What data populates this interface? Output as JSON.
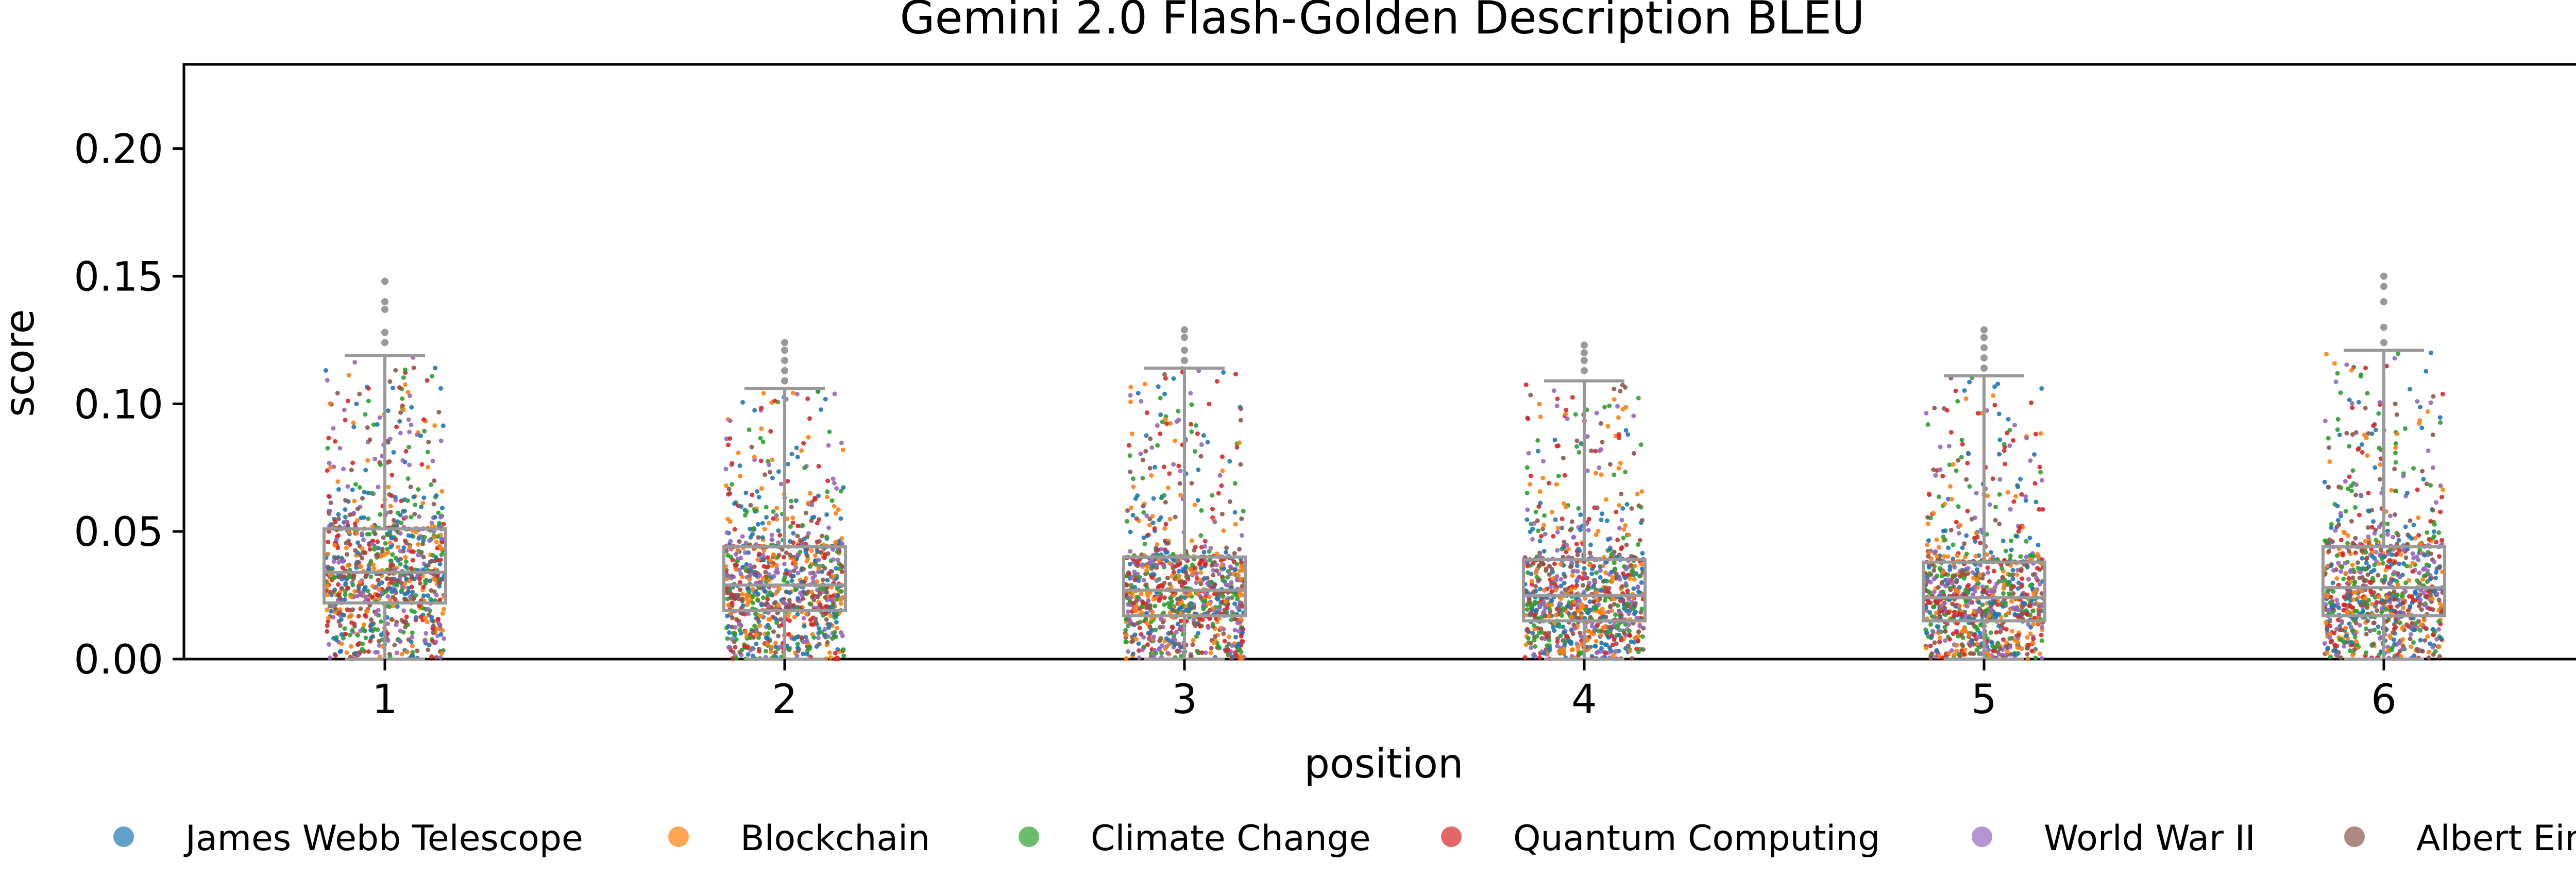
{
  "chart_data": {
    "type": "scatter",
    "title": "Gemini 2.0 Flash-Golden Description BLEU",
    "xlabel": "position",
    "ylabel": "score",
    "categories": [
      "1",
      "2",
      "3",
      "4",
      "5",
      "6"
    ],
    "ylim": [
      0,
      0.233
    ],
    "yticks": [
      "0.00",
      "0.05",
      "0.10",
      "0.15",
      "0.20"
    ],
    "grid": false,
    "legend_placement": "bottom",
    "series": [
      {
        "name": "James Webb Telescope",
        "color": "#1f77b4"
      },
      {
        "name": "Blockchain",
        "color": "#ff7f0e"
      },
      {
        "name": "Climate Change",
        "color": "#2ca02c"
      },
      {
        "name": "Quantum Computing",
        "color": "#d62728"
      },
      {
        "name": "World War II",
        "color": "#9467bd"
      },
      {
        "name": "Albert Einstein",
        "color": "#8c564b"
      }
    ],
    "boxplots": [
      {
        "position": "1",
        "q1": 0.022,
        "median": 0.034,
        "q3": 0.051,
        "whisker_low": 0.0,
        "whisker_high": 0.119,
        "outliers": [
          0.124,
          0.128,
          0.137,
          0.14,
          0.148
        ]
      },
      {
        "position": "2",
        "q1": 0.019,
        "median": 0.029,
        "q3": 0.044,
        "whisker_low": 0.0,
        "whisker_high": 0.106,
        "outliers": [
          0.109,
          0.113,
          0.117,
          0.121,
          0.124
        ]
      },
      {
        "position": "3",
        "q1": 0.017,
        "median": 0.027,
        "q3": 0.04,
        "whisker_low": 0.0,
        "whisker_high": 0.114,
        "outliers": [
          0.117,
          0.121,
          0.126,
          0.129
        ]
      },
      {
        "position": "4",
        "q1": 0.015,
        "median": 0.025,
        "q3": 0.039,
        "whisker_low": 0.0,
        "whisker_high": 0.109,
        "outliers": [
          0.113,
          0.117,
          0.12,
          0.123
        ]
      },
      {
        "position": "5",
        "q1": 0.015,
        "median": 0.024,
        "q3": 0.038,
        "whisker_low": 0.0,
        "whisker_high": 0.111,
        "outliers": [
          0.114,
          0.118,
          0.122,
          0.126,
          0.129
        ]
      },
      {
        "position": "6",
        "q1": 0.017,
        "median": 0.028,
        "q3": 0.044,
        "whisker_low": 0.0,
        "whisker_high": 0.121,
        "outliers": [
          0.124,
          0.13,
          0.14,
          0.146,
          0.15
        ]
      }
    ],
    "box_color": "#999999"
  }
}
